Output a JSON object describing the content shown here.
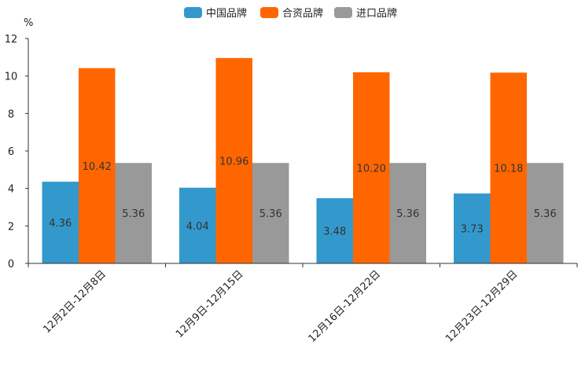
{
  "chart_data": {
    "type": "bar",
    "unit_label": "%",
    "categories": [
      "12月2日-12月8日",
      "12月9日-12月15日",
      "12月16日-12月22日",
      "12月23日-12月29日"
    ],
    "series": [
      {
        "name": "中国品牌",
        "color": "#3399cc",
        "values": [
          4.36,
          4.04,
          3.48,
          3.73
        ],
        "labels": [
          "4.36",
          "4.04",
          "3.48",
          "3.73"
        ]
      },
      {
        "name": "合资品牌",
        "color": "#ff6600",
        "values": [
          10.42,
          10.96,
          10.2,
          10.18
        ],
        "labels": [
          "10.42",
          "10.96",
          "10.20",
          "10.18"
        ]
      },
      {
        "name": "进口品牌",
        "color": "#999999",
        "values": [
          5.36,
          5.36,
          5.36,
          5.36
        ],
        "labels": [
          "5.36",
          "5.36",
          "5.36",
          "5.36"
        ]
      }
    ],
    "ylim": [
      0,
      12
    ],
    "yticks": [
      0,
      2,
      4,
      6,
      8,
      10,
      12
    ],
    "ytick_labels": [
      "0",
      "2",
      "4",
      "6",
      "8",
      "10",
      "12"
    ],
    "legend_position": "top-center",
    "grid": false
  }
}
